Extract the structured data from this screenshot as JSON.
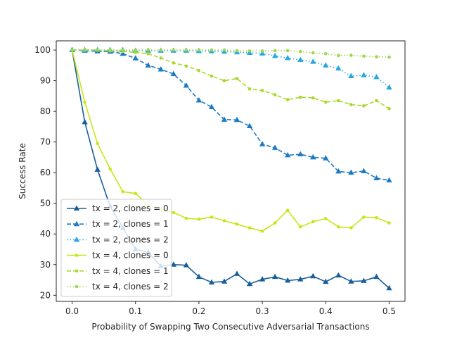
{
  "chart_data": {
    "type": "line",
    "title": "",
    "xlabel": "Probability of Swapping Two Consecutive Adversarial Transactions",
    "ylabel": "Success Rate",
    "xlim": [
      -0.025,
      0.525
    ],
    "ylim": [
      18,
      103
    ],
    "xticks": [
      0.0,
      0.1,
      0.2,
      0.3,
      0.4,
      0.5
    ],
    "xtick_labels": [
      "0.0",
      "0.1",
      "0.2",
      "0.3",
      "0.4",
      "0.5"
    ],
    "yticks": [
      20,
      30,
      40,
      50,
      60,
      70,
      80,
      90,
      100
    ],
    "ytick_labels": [
      "20",
      "30",
      "40",
      "50",
      "60",
      "70",
      "80",
      "90",
      "100"
    ],
    "legend_position": "lower-left",
    "x": [
      0.0,
      0.02,
      0.04,
      0.06,
      0.08,
      0.1,
      0.12,
      0.14,
      0.16,
      0.18,
      0.2,
      0.22,
      0.24,
      0.26,
      0.28,
      0.3,
      0.32,
      0.34,
      0.36,
      0.38,
      0.4,
      0.42,
      0.44,
      0.46,
      0.48,
      0.5
    ],
    "series": [
      {
        "name": "tx = 2, clones = 0",
        "color": "#1a5f9c",
        "dash": "solid",
        "marker": "triangle",
        "values": [
          100,
          76.5,
          61,
          49,
          42,
          35,
          34,
          29.5,
          30,
          29.8,
          26,
          24.2,
          24.5,
          27,
          23.7,
          25.2,
          26,
          24.8,
          25.2,
          26.2,
          24.4,
          26.5,
          24.5,
          24.7,
          26,
          22.3
        ]
      },
      {
        "name": "tx = 2, clones = 1",
        "color": "#1d7bc4",
        "dash": "dashed",
        "marker": "triangle",
        "values": [
          100,
          99.8,
          99.6,
          99.5,
          98.8,
          97.3,
          95,
          93.7,
          92.2,
          88.4,
          83.6,
          81.4,
          77.3,
          77.2,
          75.2,
          69.3,
          68.1,
          65.7,
          66,
          65,
          64.7,
          60.4,
          60,
          60.5,
          58.2,
          57.5
        ]
      },
      {
        "name": "tx = 2, clones = 2",
        "color": "#29a8e0",
        "dash": "dotted",
        "marker": "triangle",
        "values": [
          100,
          100,
          100,
          100,
          100,
          99.8,
          99.8,
          99.8,
          99.8,
          99.8,
          99.7,
          99.6,
          99.5,
          99.3,
          99.1,
          98.9,
          98.1,
          97.4,
          96.8,
          96.2,
          95,
          94,
          91.5,
          91.8,
          91.2,
          87.8
        ]
      },
      {
        "name": "tx = 4, clones = 0",
        "color": "#c8e617",
        "dash": "solid",
        "marker": "circle",
        "values": [
          100,
          83,
          69.5,
          61.2,
          53.8,
          53.2,
          49.5,
          48,
          47,
          45.1,
          44.8,
          45.5,
          44.3,
          43.2,
          42,
          40.9,
          43.6,
          47.7,
          42.3,
          44,
          45,
          42.3,
          42,
          45.5,
          45.3,
          43.6
        ]
      },
      {
        "name": "tx = 4, clones = 1",
        "color": "#a8d82c",
        "dash": "dashed",
        "marker": "circle",
        "values": [
          100,
          100,
          100,
          99.7,
          99.6,
          99.2,
          98.8,
          97.4,
          95.8,
          94.8,
          93.3,
          91.5,
          90,
          90.7,
          87.3,
          86.8,
          85.4,
          83.8,
          84.6,
          84.4,
          83,
          83.5,
          82.2,
          81.8,
          83.5,
          80.9
        ]
      },
      {
        "name": "tx = 4, clones = 2",
        "color": "#9ed54a",
        "dash": "dotted",
        "marker": "circle",
        "values": [
          100,
          100,
          100,
          100,
          100,
          100,
          100,
          100,
          100,
          100,
          100,
          100,
          100,
          99.8,
          99.7,
          99.7,
          99.8,
          99.8,
          99.5,
          99.1,
          98.8,
          98.2,
          98.3,
          98,
          97.8,
          97.7
        ]
      }
    ]
  }
}
